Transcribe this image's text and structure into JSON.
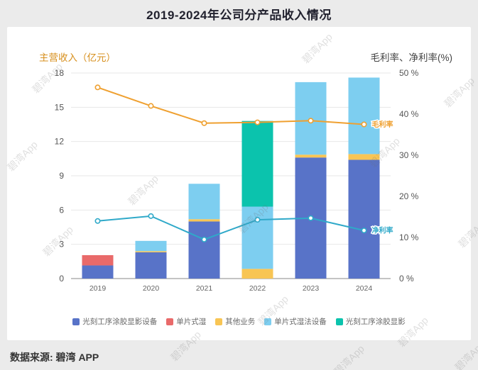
{
  "page": {
    "title": "2019-2024年公司分产品收入情况",
    "source": "数据来源: 碧湾 APP",
    "watermark": "碧湾App"
  },
  "chart_data": {
    "type": "combo-stacked-bar-line",
    "title": "2019-2024年公司分产品收入情况",
    "categories": [
      "2019",
      "2020",
      "2021",
      "2022",
      "2023",
      "2024"
    ],
    "left_axis": {
      "label": "主营收入（亿元）",
      "ticks": [
        0,
        3,
        6,
        9,
        12,
        15,
        18
      ],
      "max": 18,
      "label_color": "#d78f1c"
    },
    "right_axis": {
      "label": "毛利率、净利率(%)",
      "ticks": [
        0,
        10,
        20,
        30,
        40,
        50
      ],
      "tick_suffix": " %",
      "max": 50,
      "label_color": "#444444"
    },
    "bar_series": [
      {
        "name": "光刻工序涂胶显影设备",
        "color": "#5873c8",
        "values": [
          1.15,
          2.3,
          5.0,
          0,
          10.6,
          10.4
        ]
      },
      {
        "name": "单片式湿",
        "color": "#e96a6a",
        "values": [
          0.9,
          0,
          0,
          0,
          0,
          0
        ]
      },
      {
        "name": "其他业务",
        "color": "#f8c554",
        "values": [
          0,
          0.1,
          0.2,
          0.85,
          0.25,
          0.5
        ]
      },
      {
        "name": "单片式湿法设备",
        "color": "#7dcef0",
        "values": [
          0,
          0.9,
          3.1,
          5.45,
          6.35,
          6.7
        ]
      },
      {
        "name": "光刻工序涂胶显影",
        "color": "#0bc3ad",
        "values": [
          0,
          0,
          0,
          7.5,
          0,
          0
        ]
      }
    ],
    "line_series": [
      {
        "name": "毛利率",
        "color": "#efa030",
        "values": [
          46.5,
          42,
          37.8,
          38,
          38.4,
          37.5
        ]
      },
      {
        "name": "净利率",
        "color": "#2fa9c9",
        "values": [
          14,
          15.2,
          9.5,
          14.3,
          14.7,
          11.7
        ]
      }
    ],
    "legend_position": "bottom",
    "grid": true
  }
}
